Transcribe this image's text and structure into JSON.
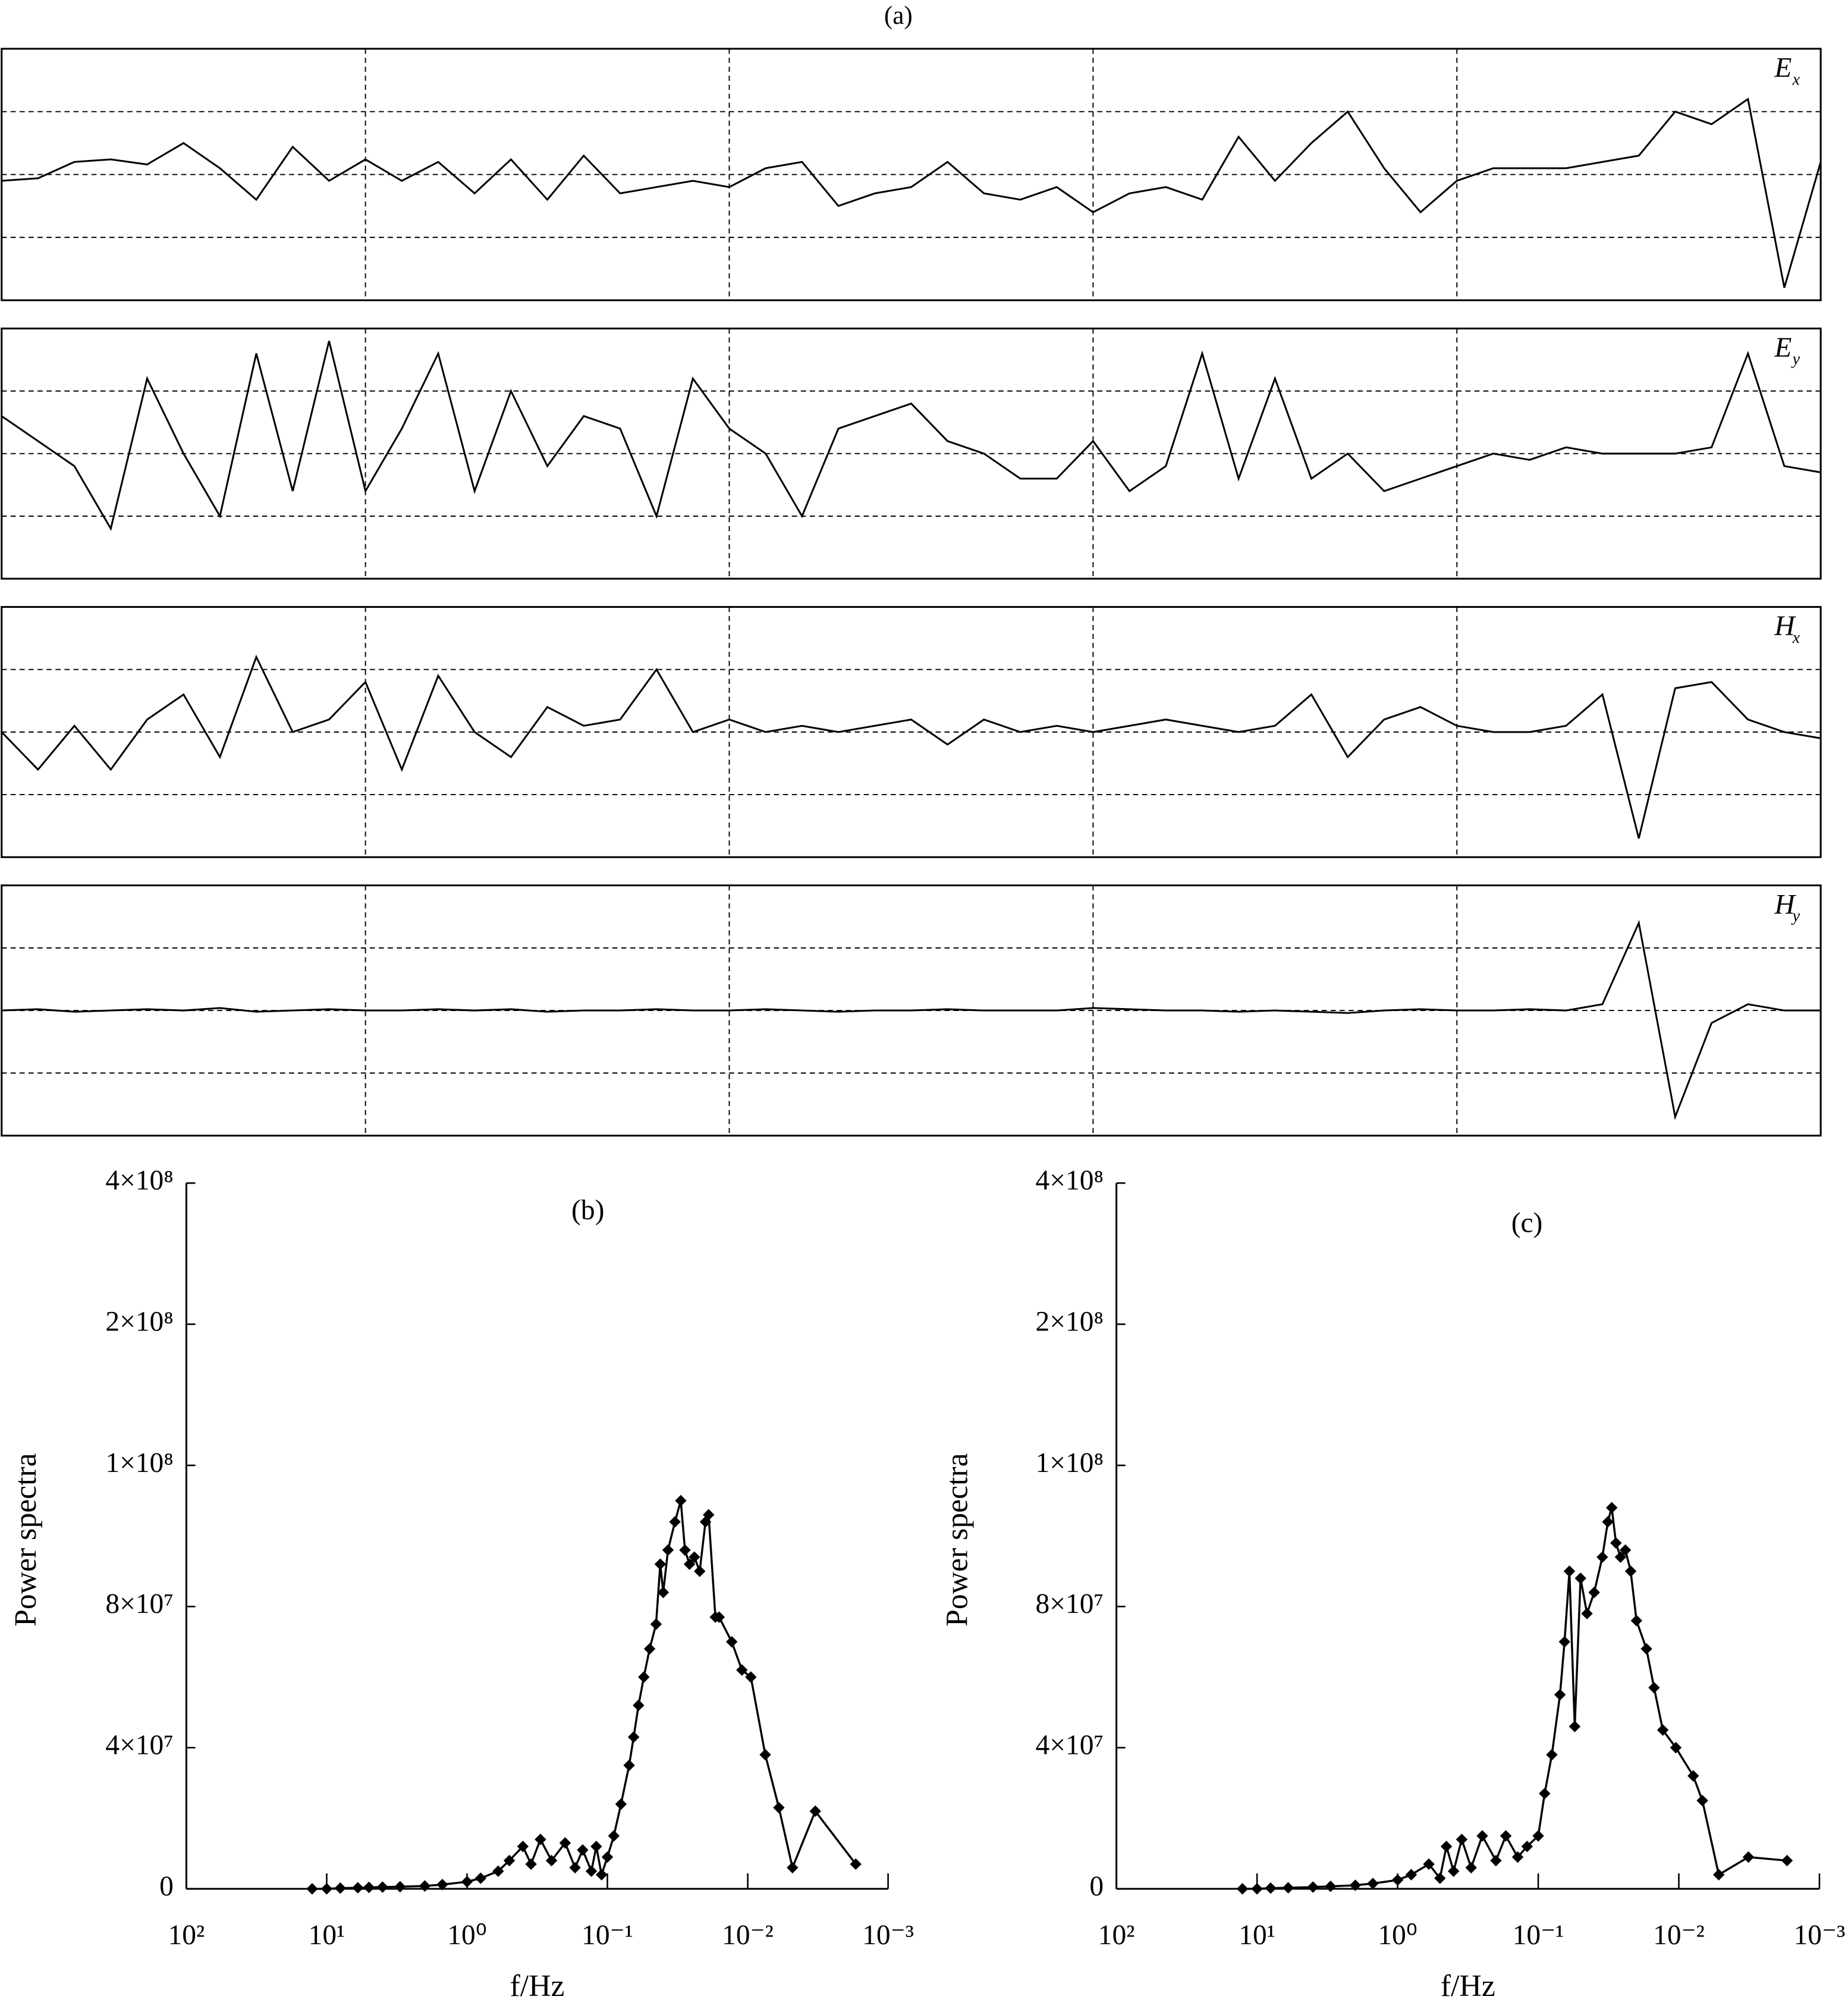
{
  "chart_data": [
    {
      "type": "line",
      "title": "(a)",
      "label": [
        "E",
        "x"
      ],
      "color": "#000000",
      "grid": true,
      "tick_labels": false,
      "xlim": [
        0,
        100
      ],
      "xticks": [
        20,
        40,
        60,
        80
      ],
      "ylim": [
        -1,
        1
      ],
      "yticks": [
        -0.5,
        0,
        0.5
      ],
      "x": [
        0,
        2,
        4,
        6,
        8,
        10,
        12,
        14,
        16,
        18,
        20,
        22,
        24,
        26,
        28,
        30,
        32,
        34,
        36,
        38,
        40,
        42,
        44,
        46,
        48,
        50,
        52,
        54,
        56,
        58,
        60,
        62,
        64,
        66,
        68,
        70,
        72,
        74,
        76,
        78,
        80,
        82,
        84,
        86,
        88,
        90,
        92,
        94,
        96,
        98,
        100
      ],
      "values": [
        -0.05,
        -0.03,
        0.1,
        0.12,
        0.08,
        0.25,
        0.05,
        -0.2,
        0.22,
        -0.05,
        0.12,
        -0.05,
        0.1,
        -0.15,
        0.12,
        -0.2,
        0.15,
        -0.15,
        -0.1,
        -0.05,
        -0.1,
        0.05,
        0.1,
        -0.25,
        -0.15,
        -0.1,
        0.1,
        -0.15,
        -0.2,
        -0.1,
        -0.3,
        -0.15,
        -0.1,
        -0.2,
        0.3,
        -0.05,
        0.25,
        0.5,
        0.05,
        -0.3,
        -0.05,
        0.05,
        0.05,
        0.05,
        0.1,
        0.15,
        0.5,
        0.4,
        0.6,
        -0.9,
        0.1
      ]
    },
    {
      "type": "line",
      "label": [
        "E",
        "y"
      ],
      "color": "#000000",
      "grid": true,
      "tick_labels": false,
      "xlim": [
        0,
        100
      ],
      "xticks": [
        20,
        40,
        60,
        80
      ],
      "ylim": [
        -1,
        1
      ],
      "yticks": [
        -0.5,
        0,
        0.5
      ],
      "x": [
        0,
        2,
        4,
        6,
        8,
        10,
        12,
        14,
        16,
        18,
        20,
        22,
        24,
        26,
        28,
        30,
        32,
        34,
        36,
        38,
        40,
        42,
        44,
        46,
        48,
        50,
        52,
        54,
        56,
        58,
        60,
        62,
        64,
        66,
        68,
        70,
        72,
        74,
        76,
        78,
        80,
        82,
        84,
        86,
        88,
        90,
        92,
        94,
        96,
        98,
        100
      ],
      "values": [
        0.3,
        0.1,
        -0.1,
        -0.6,
        0.6,
        0.0,
        -0.5,
        0.8,
        -0.3,
        0.9,
        -0.3,
        0.2,
        0.8,
        -0.3,
        0.5,
        -0.1,
        0.3,
        0.2,
        -0.5,
        0.6,
        0.2,
        0.0,
        -0.5,
        0.2,
        0.3,
        0.4,
        0.1,
        0.0,
        -0.2,
        -0.2,
        0.1,
        -0.3,
        -0.1,
        0.8,
        -0.2,
        0.6,
        -0.2,
        0.0,
        -0.3,
        -0.2,
        -0.1,
        0.0,
        -0.05,
        0.05,
        0.0,
        0.0,
        0.0,
        0.05,
        0.8,
        -0.1,
        -0.15
      ]
    },
    {
      "type": "line",
      "label": [
        "H",
        "x"
      ],
      "color": "#000000",
      "grid": true,
      "tick_labels": false,
      "xlim": [
        0,
        100
      ],
      "xticks": [
        20,
        40,
        60,
        80
      ],
      "ylim": [
        -1,
        1
      ],
      "yticks": [
        -0.5,
        0,
        0.5
      ],
      "x": [
        0,
        2,
        4,
        6,
        8,
        10,
        12,
        14,
        16,
        18,
        20,
        22,
        24,
        26,
        28,
        30,
        32,
        34,
        36,
        38,
        40,
        42,
        44,
        46,
        48,
        50,
        52,
        54,
        56,
        58,
        60,
        62,
        64,
        66,
        68,
        70,
        72,
        74,
        76,
        78,
        80,
        82,
        84,
        86,
        88,
        90,
        92,
        94,
        96,
        98,
        100
      ],
      "values": [
        0.0,
        -0.3,
        0.05,
        -0.3,
        0.1,
        0.3,
        -0.2,
        0.6,
        0.0,
        0.1,
        0.4,
        -0.3,
        0.45,
        0.0,
        -0.2,
        0.2,
        0.05,
        0.1,
        0.5,
        0.0,
        0.1,
        0.0,
        0.05,
        0.0,
        0.05,
        0.1,
        -0.1,
        0.1,
        0.0,
        0.05,
        0.0,
        0.05,
        0.1,
        0.05,
        0.0,
        0.05,
        0.3,
        -0.2,
        0.1,
        0.2,
        0.05,
        0.0,
        0.0,
        0.05,
        0.3,
        -0.85,
        0.35,
        0.4,
        0.1,
        0.0,
        -0.05
      ]
    },
    {
      "type": "line",
      "label": [
        "H",
        "y"
      ],
      "color": "#000000",
      "grid": true,
      "tick_labels": false,
      "xlim": [
        0,
        100
      ],
      "xticks": [
        20,
        40,
        60,
        80
      ],
      "ylim": [
        -1,
        1
      ],
      "yticks": [
        -0.5,
        0,
        0.5
      ],
      "x": [
        0,
        2,
        4,
        6,
        8,
        10,
        12,
        14,
        16,
        18,
        20,
        22,
        24,
        26,
        28,
        30,
        32,
        34,
        36,
        38,
        40,
        42,
        44,
        46,
        48,
        50,
        52,
        54,
        56,
        58,
        60,
        62,
        64,
        66,
        68,
        70,
        72,
        74,
        76,
        78,
        80,
        82,
        84,
        86,
        88,
        90,
        92,
        94,
        96,
        98,
        100
      ],
      "values": [
        0,
        0.01,
        -0.01,
        0,
        0.01,
        0,
        0.02,
        -0.01,
        0,
        0.01,
        0,
        0,
        0.01,
        0,
        0.01,
        -0.01,
        0,
        0,
        0.01,
        0,
        0,
        0.01,
        0,
        -0.01,
        0,
        0,
        0.01,
        0,
        0,
        0,
        0.02,
        0.01,
        0,
        0,
        -0.01,
        0,
        -0.01,
        -0.02,
        0,
        0.01,
        0,
        0,
        0.01,
        0,
        0.05,
        0.7,
        -0.85,
        -0.1,
        0.05,
        0,
        0
      ]
    },
    {
      "type": "spectrum",
      "title": "(b)",
      "xlabel": "f/Hz",
      "ylabel": "Power spectra",
      "color": "#000000",
      "marker": "diamond",
      "xscale": "log",
      "y_scale": "ticks-evenly-spaced",
      "xlim": [
        100,
        0.001
      ],
      "xticks": [
        {
          "value": 100,
          "label": "10²"
        },
        {
          "value": 10,
          "label": "10¹"
        },
        {
          "value": 1,
          "label": "10⁰"
        },
        {
          "value": 0.1,
          "label": "10⁻¹"
        },
        {
          "value": 0.01,
          "label": "10⁻²"
        },
        {
          "value": 0.001,
          "label": "10⁻³"
        }
      ],
      "ylim": [
        0,
        400000000
      ],
      "yticks": [
        0,
        {
          "value": 40000000,
          "label": "4×10⁷"
        },
        {
          "value": 80000000,
          "label": "8×10⁷"
        },
        {
          "value": 100000000,
          "label": "1×10⁸"
        },
        {
          "value": 200000000,
          "label": "2×10⁸"
        },
        {
          "value": 400000000,
          "label": "4×10⁸"
        }
      ],
      "x": [
        12.7,
        10,
        8,
        6,
        5,
        4,
        3,
        2,
        1.5,
        1,
        0.8,
        0.6,
        0.5,
        0.4,
        0.35,
        0.3,
        0.25,
        0.2,
        0.17,
        0.15,
        0.13,
        0.12,
        0.11,
        0.1,
        0.09,
        0.08,
        0.07,
        0.065,
        0.06,
        0.055,
        0.05,
        0.045,
        0.042,
        0.04,
        0.037,
        0.033,
        0.03,
        0.028,
        0.026,
        0.024,
        0.022,
        0.02,
        0.019,
        0.017,
        0.016,
        0.013,
        0.011,
        0.0095,
        0.0075,
        0.006,
        0.0048,
        0.0033,
        0.0017
      ],
      "values": [
        0,
        0,
        200000,
        300000,
        400000,
        500000,
        600000,
        800000,
        1200000,
        2000000,
        3000000,
        5000000,
        8000000,
        12000000,
        7000000,
        14000000,
        8000000,
        13000000,
        6000000,
        11000000,
        5000000,
        12000000,
        4000000,
        9000000,
        15000000,
        24000000,
        35000000,
        43000000,
        52000000,
        60000000,
        68000000,
        75000000,
        86000000,
        82000000,
        88000000,
        92000000,
        95000000,
        88000000,
        86000000,
        87000000,
        85000000,
        92000000,
        93000000,
        77000000,
        77000000,
        70000000,
        62000000,
        60000000,
        38000000,
        23000000,
        6000000,
        22000000,
        7000000
      ]
    },
    {
      "type": "spectrum",
      "title": "(c)",
      "xlabel": "f/Hz",
      "ylabel": "Power spectra",
      "color": "#000000",
      "marker": "diamond",
      "xscale": "log",
      "y_scale": "ticks-evenly-spaced",
      "xlim": [
        100,
        0.001
      ],
      "xticks": [
        {
          "value": 100,
          "label": "10²"
        },
        {
          "value": 10,
          "label": "10¹"
        },
        {
          "value": 1,
          "label": "10⁰"
        },
        {
          "value": 0.1,
          "label": "10⁻¹"
        },
        {
          "value": 0.01,
          "label": "10⁻²"
        },
        {
          "value": 0.001,
          "label": "10⁻³"
        }
      ],
      "ylim": [
        0,
        400000000
      ],
      "yticks": [
        0,
        {
          "value": 40000000,
          "label": "4×10⁷"
        },
        {
          "value": 80000000,
          "label": "8×10⁷"
        },
        {
          "value": 100000000,
          "label": "1×10⁸"
        },
        {
          "value": 200000000,
          "label": "2×10⁸"
        },
        {
          "value": 400000000,
          "label": "4×10⁸"
        }
      ],
      "x": [
        12.7,
        10,
        8,
        6,
        4,
        3,
        2,
        1.5,
        1,
        0.8,
        0.6,
        0.5,
        0.45,
        0.4,
        0.35,
        0.3,
        0.25,
        0.2,
        0.17,
        0.14,
        0.12,
        0.1,
        0.09,
        0.08,
        0.07,
        0.065,
        0.06,
        0.055,
        0.05,
        0.045,
        0.04,
        0.035,
        0.032,
        0.03,
        0.028,
        0.026,
        0.024,
        0.022,
        0.02,
        0.017,
        0.015,
        0.013,
        0.0105,
        0.0079,
        0.0068,
        0.0052,
        0.0032,
        0.0017
      ],
      "values": [
        0,
        0,
        200000,
        300000,
        500000,
        700000,
        1000000,
        1500000,
        2500000,
        4000000,
        7000000,
        3000000,
        12000000,
        5000000,
        14000000,
        6000000,
        15000000,
        8000000,
        15000000,
        9000000,
        12000000,
        15000000,
        27000000,
        38000000,
        55000000,
        70000000,
        85000000,
        46000000,
        84000000,
        78000000,
        82000000,
        87000000,
        92000000,
        94000000,
        89000000,
        87000000,
        88000000,
        85000000,
        76000000,
        68000000,
        57000000,
        45000000,
        40000000,
        32000000,
        25000000,
        4000000,
        9000000,
        8000000
      ]
    }
  ]
}
